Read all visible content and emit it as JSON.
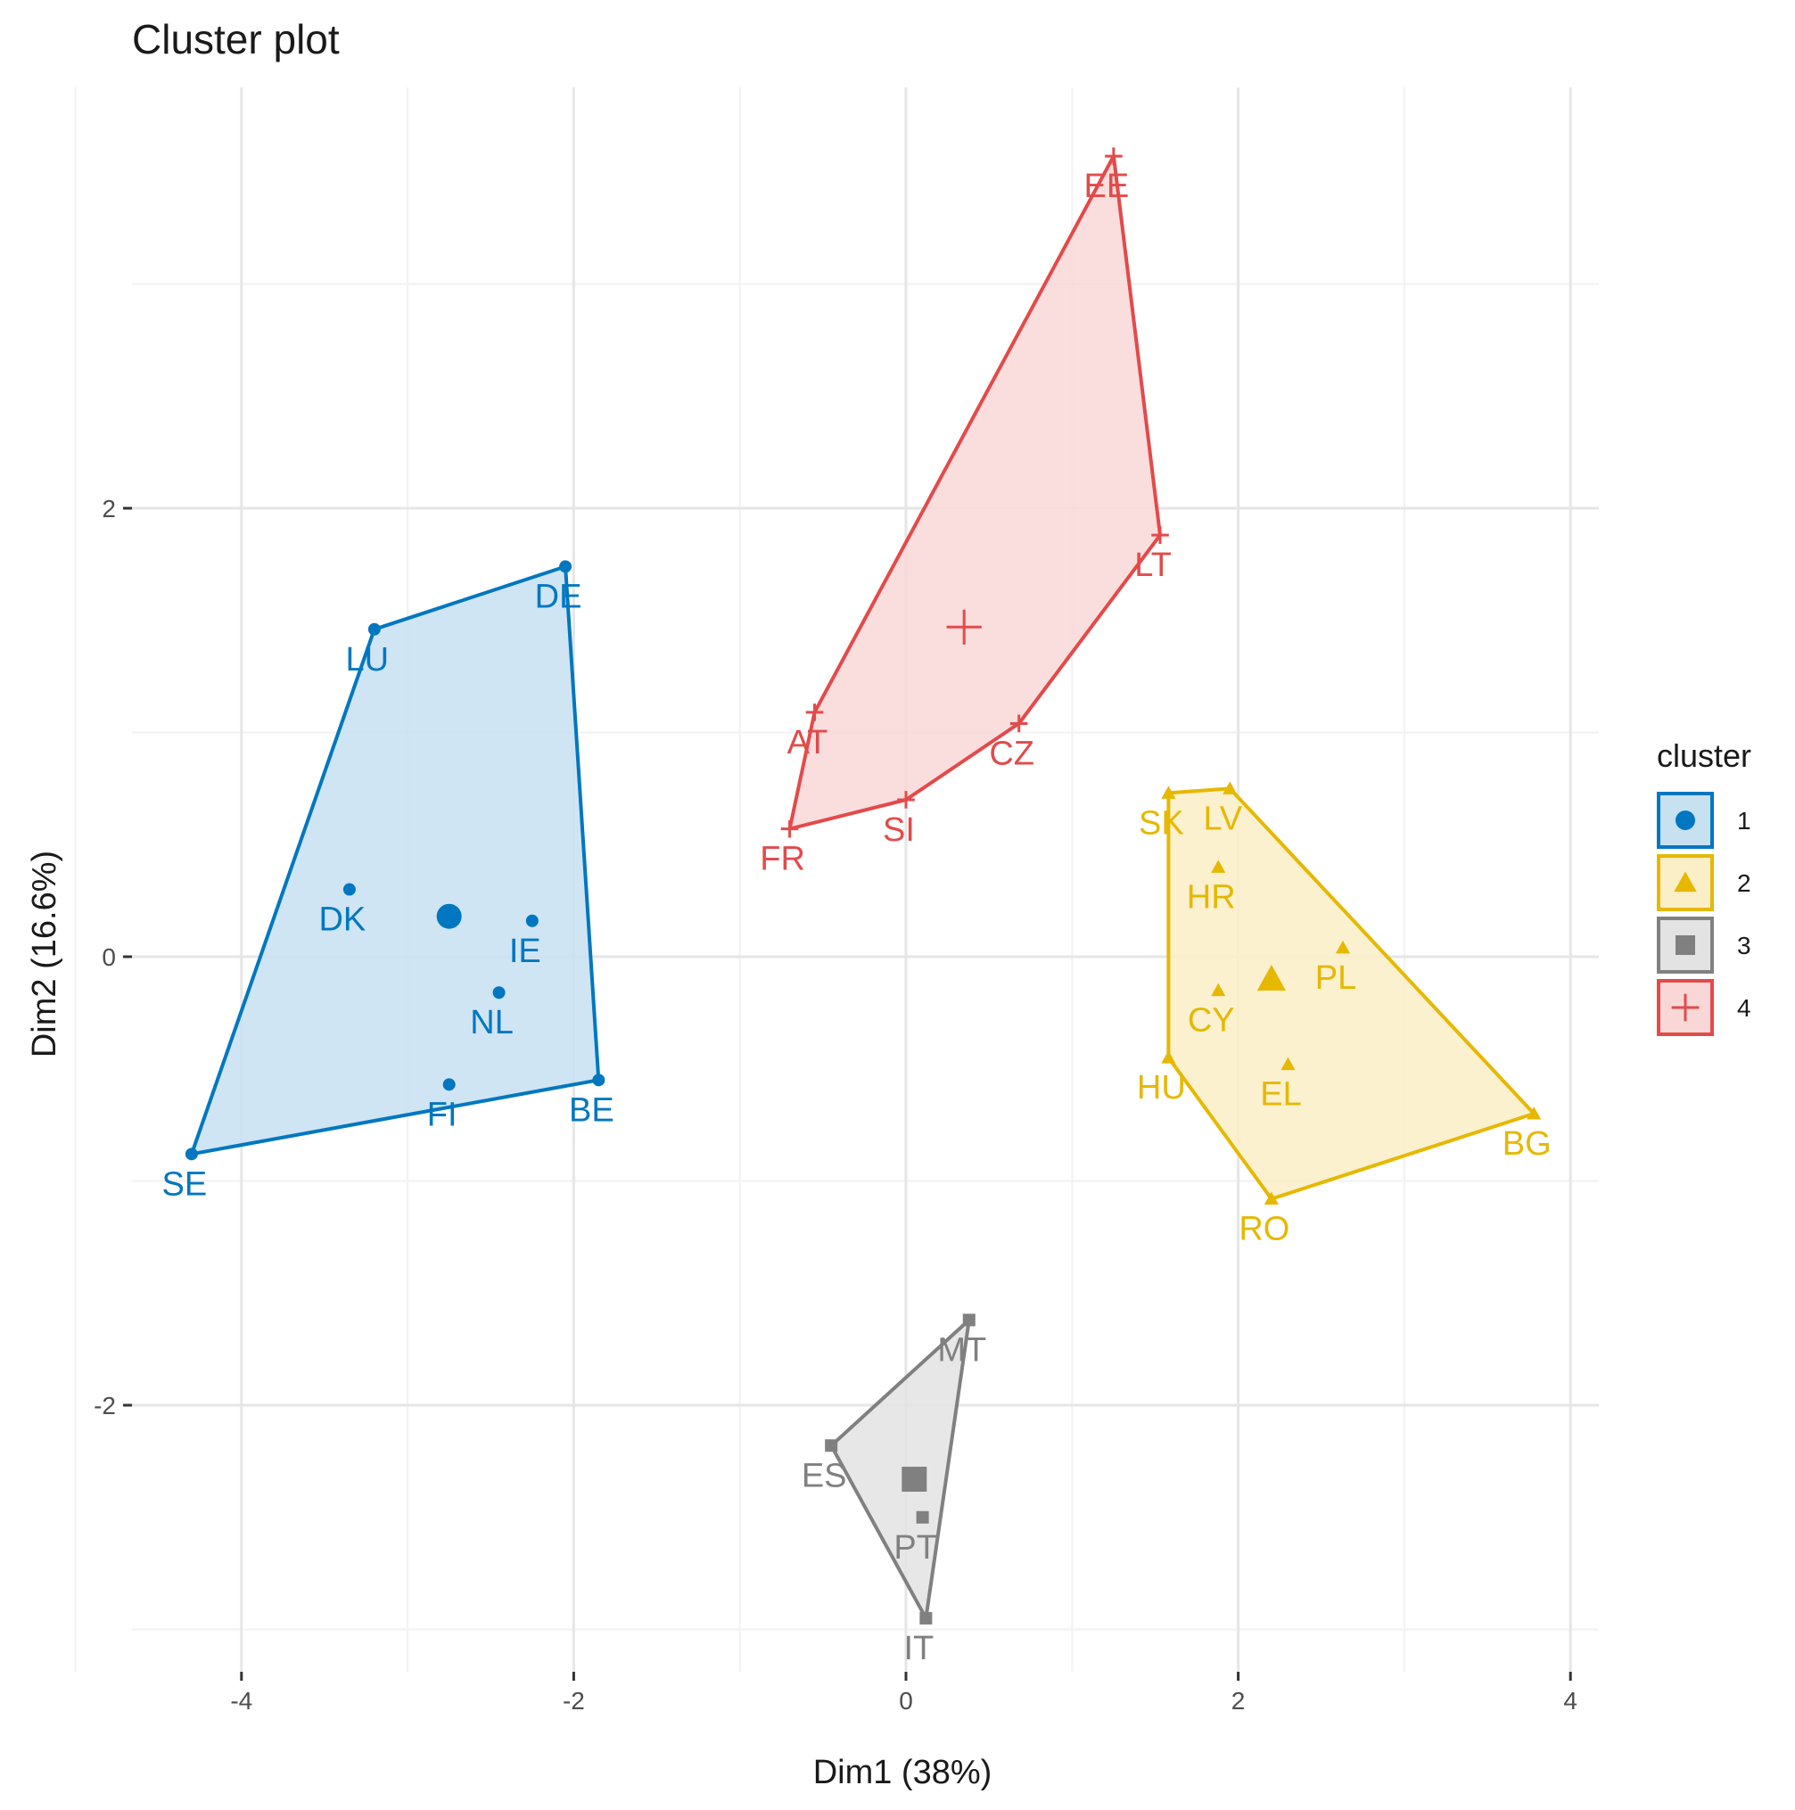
{
  "chart_data": {
    "type": "scatter",
    "title": "Cluster plot",
    "xlabel": "Dim1 (38%)",
    "ylabel": "Dim2 (16.6%)",
    "xlim": [
      -5.3,
      4.2
    ],
    "ylim": [
      -3.2,
      3.5
    ],
    "x_ticks": [
      -4,
      -2,
      0,
      2,
      4
    ],
    "y_ticks": [
      -2,
      0,
      2
    ],
    "x_tick_labels": [
      "-4",
      "-2",
      "0",
      "2",
      "4"
    ],
    "y_tick_labels": [
      "-2",
      "0",
      "2"
    ],
    "grid": true,
    "legend": {
      "title": "cluster",
      "position": "right",
      "entries": [
        "1",
        "2",
        "3",
        "4"
      ]
    },
    "series": [
      {
        "name": "1",
        "color": "#0077c0",
        "shape": "circle",
        "hull": [
          "LU",
          "DE",
          "BE",
          "SE"
        ],
        "centroid": {
          "x": -2.75,
          "y": 0.18
        },
        "points": [
          {
            "label": "LU",
            "x": -3.2,
            "y": 1.46
          },
          {
            "label": "DE",
            "x": -2.05,
            "y": 1.74
          },
          {
            "label": "BE",
            "x": -1.85,
            "y": -0.55
          },
          {
            "label": "SE",
            "x": -4.3,
            "y": -0.88
          },
          {
            "label": "DK",
            "x": -3.35,
            "y": 0.3
          },
          {
            "label": "IE",
            "x": -2.25,
            "y": 0.16
          },
          {
            "label": "NL",
            "x": -2.45,
            "y": -0.16
          },
          {
            "label": "FI",
            "x": -2.75,
            "y": -0.57
          }
        ]
      },
      {
        "name": "2",
        "color": "#e6b800",
        "shape": "triangle",
        "hull": [
          "SK",
          "LV",
          "BG",
          "RO",
          "HU"
        ],
        "centroid": {
          "x": 2.2,
          "y": -0.1
        },
        "points": [
          {
            "label": "SK",
            "x": 1.58,
            "y": 0.73
          },
          {
            "label": "LV",
            "x": 1.95,
            "y": 0.75
          },
          {
            "label": "BG",
            "x": 3.78,
            "y": -0.7
          },
          {
            "label": "RO",
            "x": 2.2,
            "y": -1.08
          },
          {
            "label": "HU",
            "x": 1.58,
            "y": -0.45
          },
          {
            "label": "HR",
            "x": 1.88,
            "y": 0.4
          },
          {
            "label": "PL",
            "x": 2.63,
            "y": 0.04
          },
          {
            "label": "CY",
            "x": 1.88,
            "y": -0.15
          },
          {
            "label": "EL",
            "x": 2.3,
            "y": -0.48
          }
        ]
      },
      {
        "name": "3",
        "color": "#808080",
        "shape": "square",
        "hull": [
          "MT",
          "ES",
          "IT"
        ],
        "centroid": {
          "x": 0.05,
          "y": -2.33
        },
        "points": [
          {
            "label": "MT",
            "x": 0.38,
            "y": -1.62
          },
          {
            "label": "ES",
            "x": -0.45,
            "y": -2.18
          },
          {
            "label": "IT",
            "x": 0.12,
            "y": -2.95
          },
          {
            "label": "PT",
            "x": 0.1,
            "y": -2.5
          }
        ]
      },
      {
        "name": "4",
        "color": "#e34a4a",
        "shape": "cross",
        "hull": [
          "EE",
          "LT",
          "CZ",
          "SI",
          "FR",
          "AT"
        ],
        "centroid": {
          "x": 0.35,
          "y": 1.47
        },
        "points": [
          {
            "label": "EE",
            "x": 1.25,
            "y": 3.57
          },
          {
            "label": "LT",
            "x": 1.53,
            "y": 1.88
          },
          {
            "label": "CZ",
            "x": 0.68,
            "y": 1.04
          },
          {
            "label": "SI",
            "x": 0.0,
            "y": 0.7
          },
          {
            "label": "FR",
            "x": -0.7,
            "y": 0.57
          },
          {
            "label": "AT",
            "x": -0.55,
            "y": 1.09
          }
        ]
      }
    ]
  }
}
